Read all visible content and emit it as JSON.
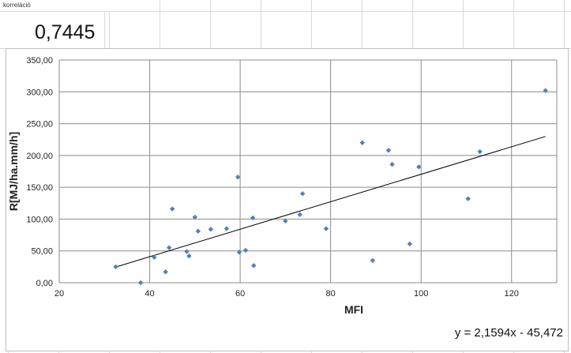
{
  "sheet": {
    "label": "korreláció",
    "value": "0,7445"
  },
  "chart_data": {
    "type": "scatter",
    "xlabel": "MFI",
    "ylabel": "R[MJ/ha.mm/h]",
    "xlim": [
      20,
      130
    ],
    "ylim": [
      0,
      350
    ],
    "x_ticks": [
      20,
      40,
      60,
      80,
      100,
      120
    ],
    "x_tick_labels": [
      "20",
      "40",
      "60",
      "80",
      "100",
      "120"
    ],
    "y_ticks": [
      0,
      50,
      100,
      150,
      200,
      250,
      300,
      350
    ],
    "y_tick_labels": [
      "0,00",
      "50,00",
      "100,00",
      "150,00",
      "200,00",
      "250,00",
      "300,00",
      "350,00"
    ],
    "grid": true,
    "marker_color": "#4f81bd",
    "points": [
      {
        "x": 32.5,
        "y": 25
      },
      {
        "x": 38,
        "y": 0
      },
      {
        "x": 41,
        "y": 40
      },
      {
        "x": 43.5,
        "y": 17
      },
      {
        "x": 44.3,
        "y": 55
      },
      {
        "x": 45,
        "y": 116
      },
      {
        "x": 48.2,
        "y": 49
      },
      {
        "x": 48.7,
        "y": 42
      },
      {
        "x": 50,
        "y": 103
      },
      {
        "x": 50.7,
        "y": 81
      },
      {
        "x": 53.5,
        "y": 84
      },
      {
        "x": 57,
        "y": 85
      },
      {
        "x": 59.5,
        "y": 166
      },
      {
        "x": 59.8,
        "y": 48
      },
      {
        "x": 61.2,
        "y": 51
      },
      {
        "x": 62.8,
        "y": 102
      },
      {
        "x": 63,
        "y": 27
      },
      {
        "x": 70,
        "y": 97
      },
      {
        "x": 73.2,
        "y": 107
      },
      {
        "x": 73.8,
        "y": 140
      },
      {
        "x": 79,
        "y": 85
      },
      {
        "x": 87,
        "y": 220
      },
      {
        "x": 89.3,
        "y": 35
      },
      {
        "x": 92.8,
        "y": 208
      },
      {
        "x": 93.6,
        "y": 186
      },
      {
        "x": 97.5,
        "y": 61
      },
      {
        "x": 99.5,
        "y": 182
      },
      {
        "x": 110.4,
        "y": 132
      },
      {
        "x": 113,
        "y": 206
      },
      {
        "x": 127.5,
        "y": 302
      }
    ],
    "trendline": {
      "slope": 2.1594,
      "intercept": -45.472,
      "x_range": [
        32.5,
        127.5
      ],
      "line_color": "#000000",
      "equation_label": "y = 2,1594x - 45,472"
    }
  }
}
